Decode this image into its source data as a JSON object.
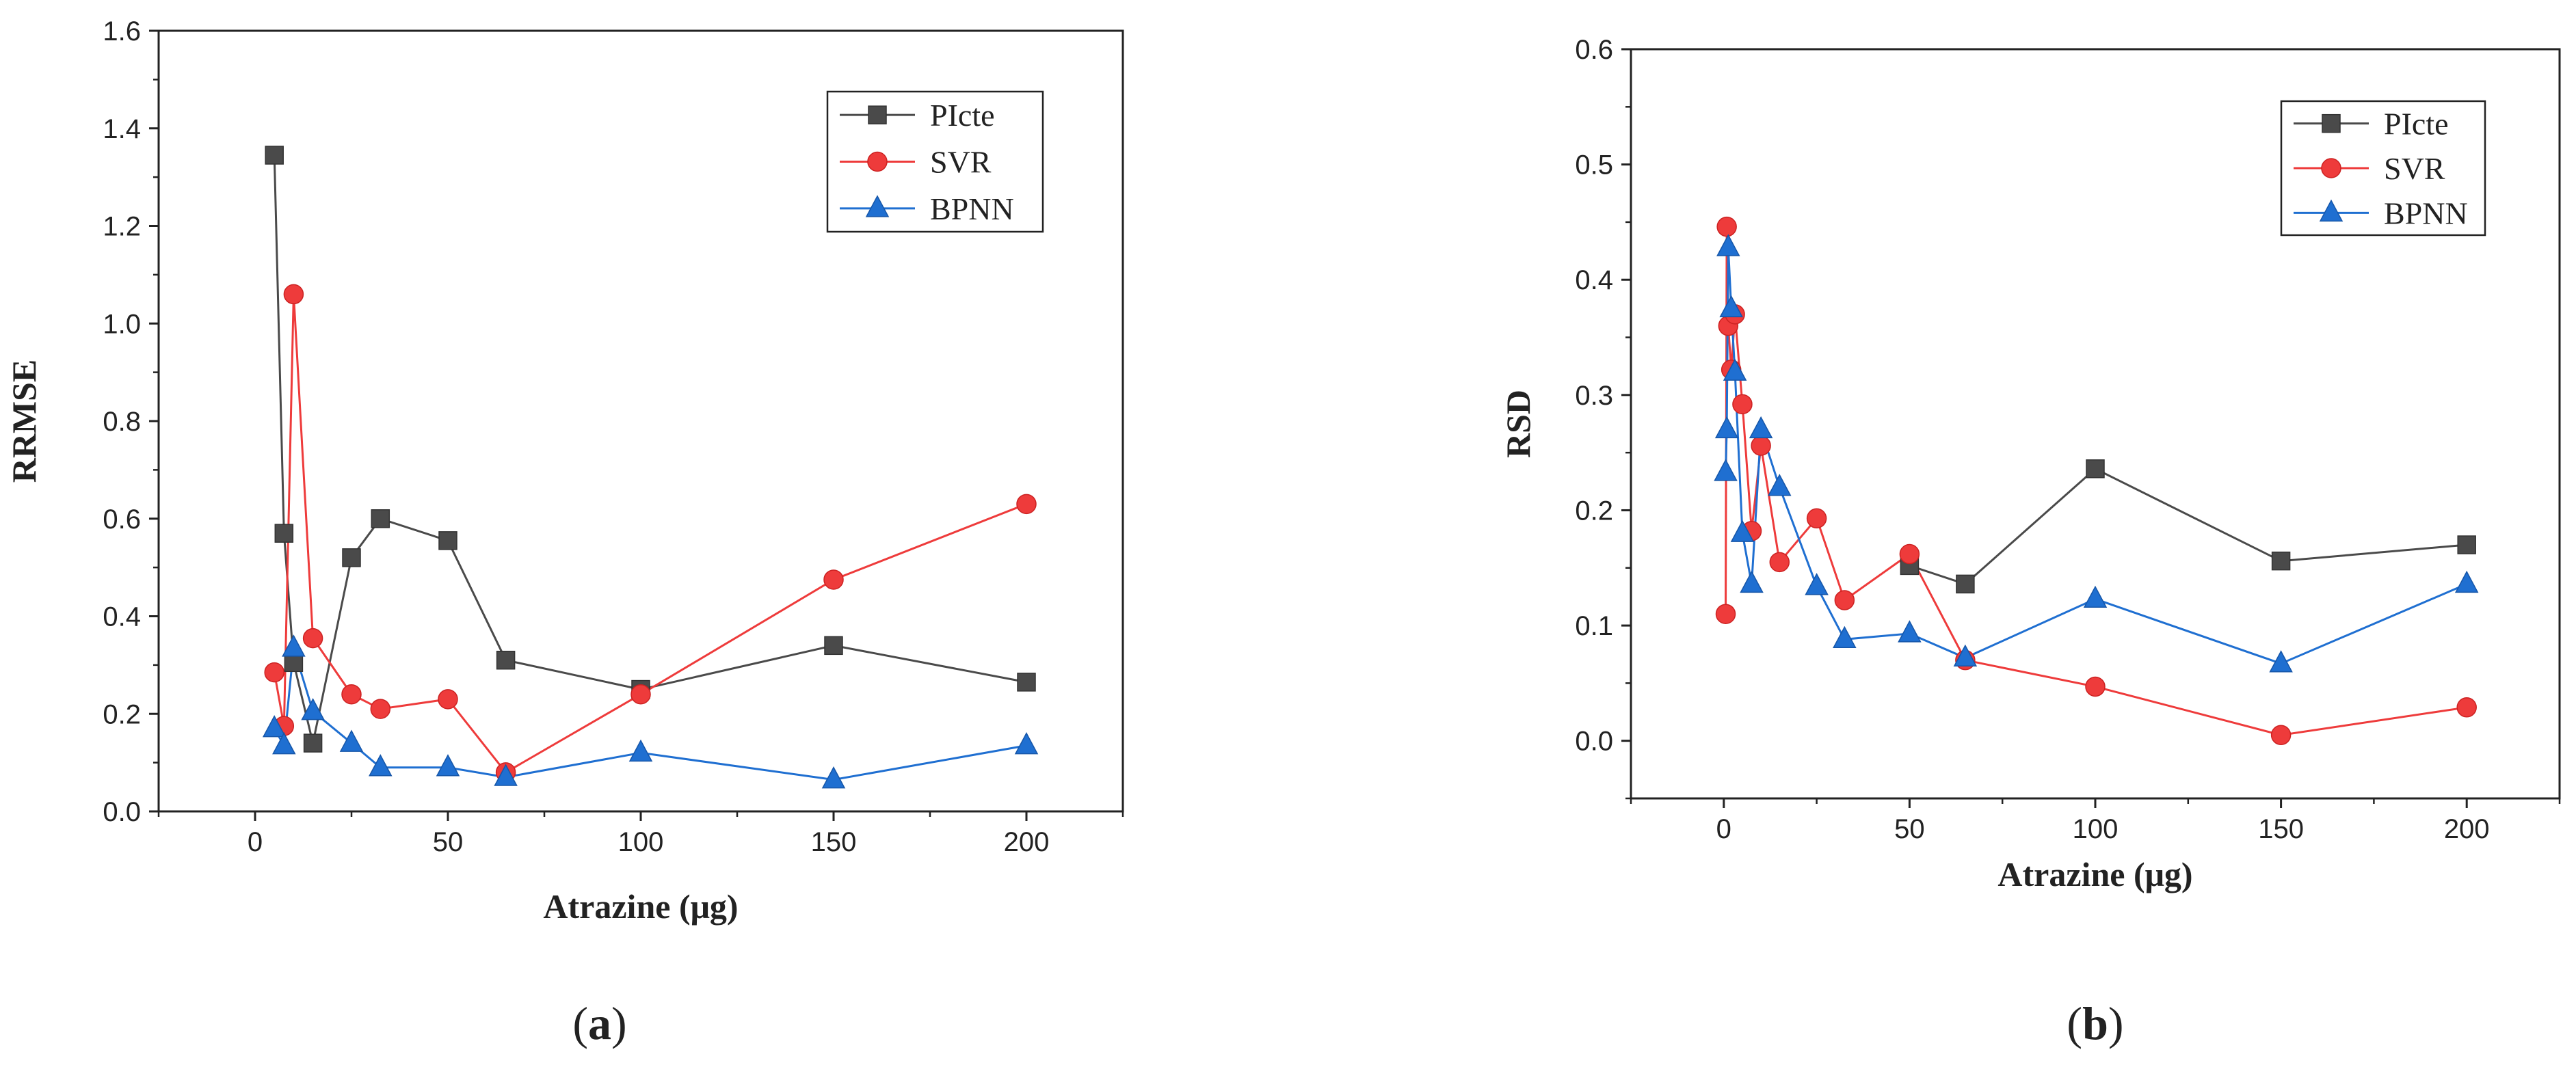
{
  "chart_data": [
    {
      "type": "line",
      "panel_label": "a",
      "xlabel": "Atrazine (μg)",
      "ylabel": "RRMSE",
      "xlim": [
        -25,
        225
      ],
      "ylim": [
        0,
        1.6
      ],
      "xticks": [
        0,
        50,
        100,
        150,
        200
      ],
      "yticks": [
        0.0,
        0.2,
        0.4,
        0.6,
        0.8,
        1.0,
        1.2,
        1.4,
        1.6
      ],
      "legend_position": "top-right",
      "series": [
        {
          "name": "PIcte",
          "color": "#4a4a4a",
          "marker": "square",
          "x": [
            5,
            7.5,
            10,
            15,
            25,
            32.5,
            50,
            65,
            100,
            150,
            200
          ],
          "y": [
            1.345,
            0.57,
            0.305,
            0.14,
            0.52,
            0.6,
            0.555,
            0.31,
            0.25,
            0.34,
            0.265
          ]
        },
        {
          "name": "SVR",
          "color": "#ee3b3b",
          "marker": "circle",
          "x": [
            5,
            7.5,
            10,
            15,
            25,
            32.5,
            50,
            65,
            100,
            150,
            200
          ],
          "y": [
            0.285,
            0.175,
            1.06,
            0.355,
            0.24,
            0.21,
            0.23,
            0.08,
            0.24,
            0.475,
            0.63
          ]
        },
        {
          "name": "BPNN",
          "color": "#1f6fd1",
          "marker": "triangle",
          "x": [
            5,
            7.5,
            10,
            15,
            25,
            32.5,
            50,
            65,
            100,
            150,
            200
          ],
          "y": [
            0.17,
            0.135,
            0.335,
            0.205,
            0.14,
            0.09,
            0.09,
            0.07,
            0.12,
            0.065,
            0.135
          ]
        }
      ]
    },
    {
      "type": "line",
      "panel_label": "b",
      "xlabel": "Atrazine (μg)",
      "ylabel": "RSD",
      "xlim": [
        -25,
        225
      ],
      "ylim": [
        -0.05,
        0.6
      ],
      "xticks": [
        0,
        50,
        100,
        150,
        200
      ],
      "yticks": [
        0.0,
        0.1,
        0.2,
        0.3,
        0.4,
        0.5,
        0.6
      ],
      "legend_position": "top-right",
      "series": [
        {
          "name": "PIcte",
          "color": "#4a4a4a",
          "marker": "square",
          "x": [
            50,
            65,
            100,
            150,
            200
          ],
          "y": [
            0.152,
            0.136,
            0.236,
            0.156,
            0.17
          ]
        },
        {
          "name": "SVR",
          "color": "#ee3b3b",
          "marker": "circle",
          "x": [
            0.5,
            0.8,
            1.2,
            2,
            3,
            5,
            7.5,
            10,
            15,
            25,
            32.5,
            50,
            65,
            100,
            150,
            200
          ],
          "y": [
            0.11,
            0.446,
            0.36,
            0.322,
            0.37,
            0.292,
            0.182,
            0.256,
            0.155,
            0.193,
            0.122,
            0.162,
            0.07,
            0.047,
            0.005,
            0.029
          ]
        },
        {
          "name": "BPNN",
          "color": "#1f6fd1",
          "marker": "triangle",
          "x": [
            0.5,
            0.8,
            1.2,
            2,
            3,
            5,
            7.5,
            10,
            15,
            25,
            32.5,
            50,
            65,
            100,
            150,
            200
          ],
          "y": [
            0.233,
            0.27,
            0.428,
            0.375,
            0.32,
            0.18,
            0.136,
            0.27,
            0.22,
            0.134,
            0.088,
            0.093,
            0.072,
            0.123,
            0.067,
            0.136
          ]
        }
      ]
    }
  ]
}
